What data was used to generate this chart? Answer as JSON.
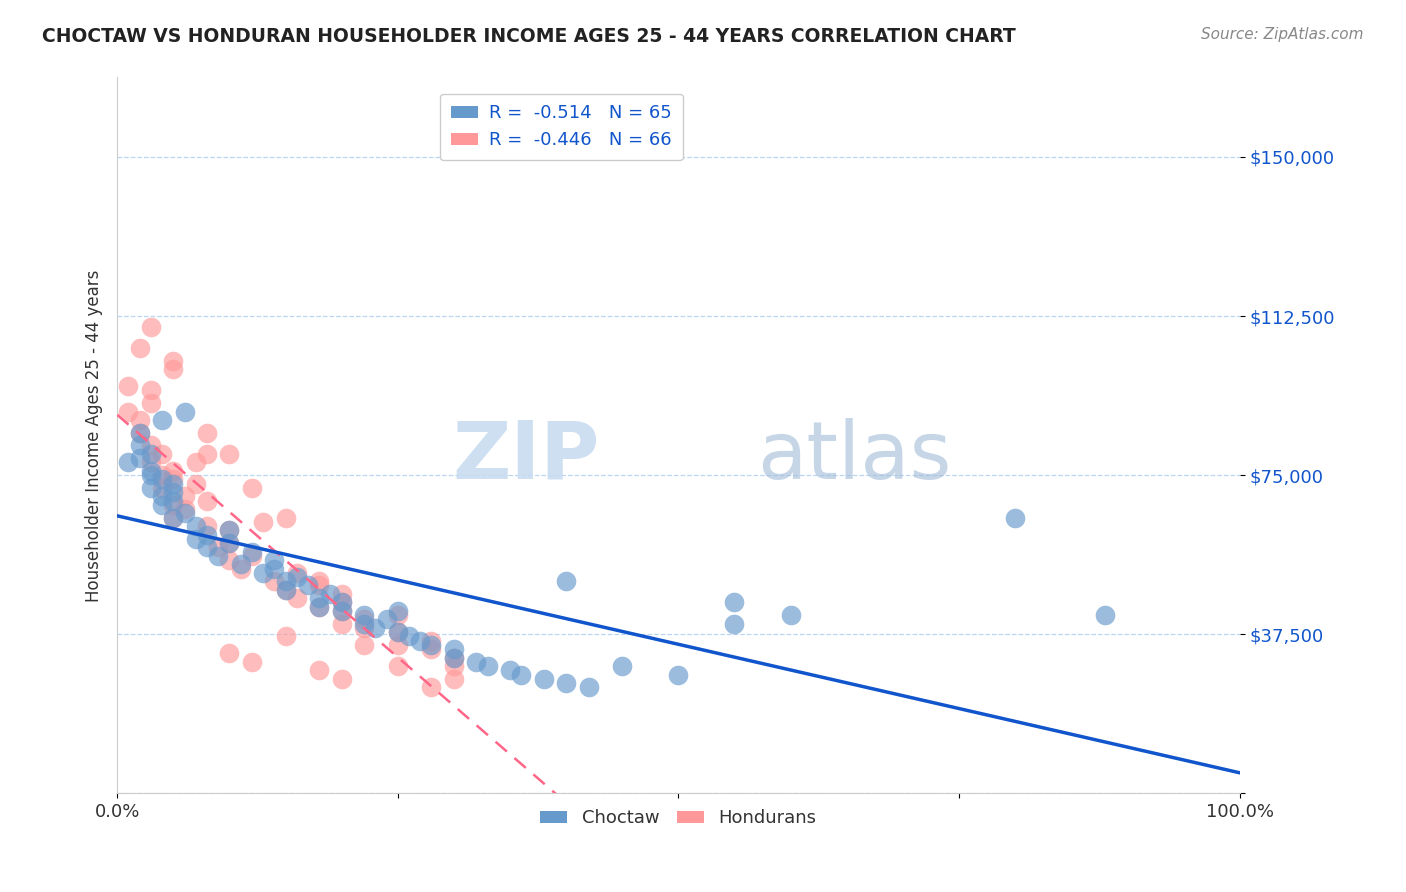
{
  "title": "CHOCTAW VS HONDURAN HOUSEHOLDER INCOME AGES 25 - 44 YEARS CORRELATION CHART",
  "source": "Source: ZipAtlas.com",
  "ylabel": "Householder Income Ages 25 - 44 years",
  "xmin": 0.0,
  "xmax": 100.0,
  "ymin": 0,
  "ymax": 168750,
  "yticks": [
    0,
    37500,
    75000,
    112500,
    150000
  ],
  "ytick_labels": [
    "",
    "$37,500",
    "$75,000",
    "$112,500",
    "$150,000"
  ],
  "xticks": [
    0,
    25,
    50,
    75,
    100
  ],
  "xtick_labels": [
    "0.0%",
    "",
    "",
    "",
    "100.0%"
  ],
  "legend_r_choctaw": "R =  -0.514",
  "legend_n_choctaw": "N = 65",
  "legend_r_hondurans": "R =  -0.446",
  "legend_n_hondurans": "N = 66",
  "choctaw_color": "#6699CC",
  "honduran_color": "#FF9999",
  "choctaw_line_color": "#1155CC",
  "honduran_line_color": "#FF6688",
  "watermark_zip": "ZIP",
  "watermark_atlas": "atlas",
  "background_color": "#FFFFFF",
  "choctaw_x": [
    1,
    2,
    2,
    2,
    3,
    3,
    3,
    3,
    4,
    4,
    4,
    4,
    5,
    5,
    5,
    5,
    6,
    6,
    7,
    7,
    8,
    8,
    9,
    10,
    10,
    11,
    12,
    13,
    14,
    14,
    15,
    15,
    16,
    17,
    18,
    18,
    19,
    20,
    20,
    22,
    22,
    23,
    24,
    25,
    25,
    26,
    27,
    28,
    30,
    30,
    32,
    33,
    35,
    36,
    38,
    40,
    40,
    42,
    45,
    50,
    55,
    55,
    60,
    80,
    88
  ],
  "choctaw_y": [
    78000,
    82000,
    79000,
    85000,
    75000,
    72000,
    80000,
    76000,
    70000,
    74000,
    68000,
    88000,
    69000,
    71000,
    73000,
    65000,
    66000,
    90000,
    60000,
    63000,
    58000,
    61000,
    56000,
    59000,
    62000,
    54000,
    57000,
    52000,
    55000,
    53000,
    50000,
    48000,
    51000,
    49000,
    46000,
    44000,
    47000,
    45000,
    43000,
    42000,
    40000,
    39000,
    41000,
    43000,
    38000,
    37000,
    36000,
    35000,
    34000,
    32000,
    31000,
    30000,
    29000,
    28000,
    27000,
    26000,
    50000,
    25000,
    30000,
    28000,
    45000,
    40000,
    42000,
    65000,
    42000
  ],
  "honduran_x": [
    1,
    1,
    2,
    2,
    2,
    3,
    3,
    3,
    3,
    4,
    4,
    4,
    5,
    5,
    5,
    5,
    5,
    6,
    6,
    7,
    7,
    8,
    8,
    8,
    9,
    10,
    10,
    10,
    10,
    11,
    12,
    12,
    13,
    14,
    15,
    15,
    16,
    16,
    18,
    18,
    18,
    20,
    20,
    20,
    20,
    22,
    22,
    25,
    25,
    25,
    28,
    28,
    30,
    30,
    10,
    12,
    15,
    18,
    20,
    22,
    25,
    28,
    30,
    5,
    8,
    3
  ],
  "honduran_y": [
    90000,
    96000,
    85000,
    88000,
    105000,
    78000,
    82000,
    92000,
    95000,
    72000,
    80000,
    75000,
    65000,
    76000,
    68000,
    100000,
    74000,
    70000,
    67000,
    78000,
    73000,
    63000,
    69000,
    85000,
    58000,
    62000,
    55000,
    59000,
    80000,
    53000,
    56000,
    72000,
    64000,
    50000,
    48000,
    65000,
    52000,
    46000,
    44000,
    49000,
    50000,
    47000,
    45000,
    43000,
    40000,
    41000,
    39000,
    42000,
    38000,
    35000,
    36000,
    34000,
    32000,
    30000,
    33000,
    31000,
    37000,
    29000,
    27000,
    35000,
    30000,
    25000,
    27000,
    102000,
    80000,
    110000
  ]
}
